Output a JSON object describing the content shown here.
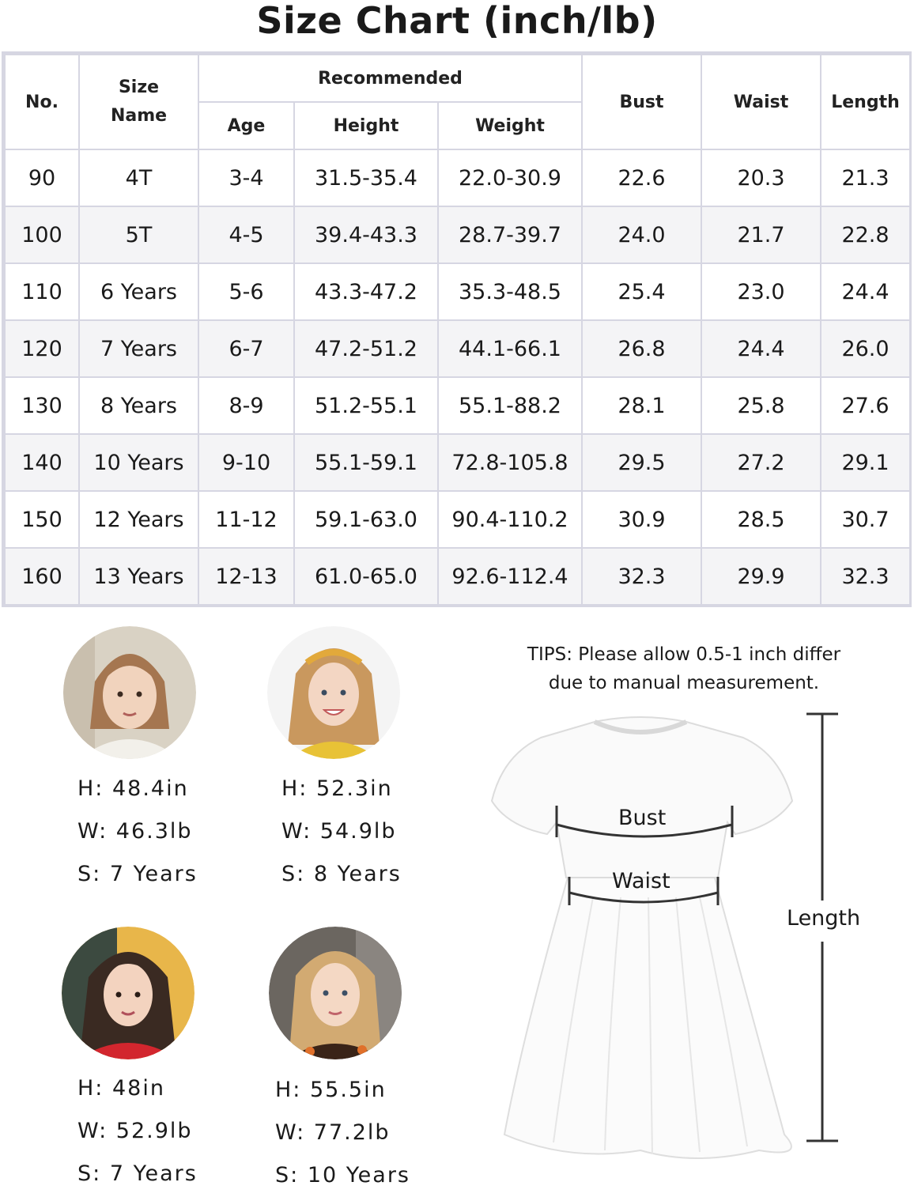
{
  "title": "Size Chart (inch/lb)",
  "table": {
    "headers": {
      "no": "No.",
      "size_name": "Size Name",
      "recommended": "Recommended",
      "age": "Age",
      "height": "Height",
      "weight": "Weight",
      "bust": "Bust",
      "waist": "Waist",
      "length": "Length"
    },
    "rows": [
      [
        "90",
        "4T",
        "3-4",
        "31.5-35.4",
        "22.0-30.9",
        "22.6",
        "20.3",
        "21.3"
      ],
      [
        "100",
        "5T",
        "4-5",
        "39.4-43.3",
        "28.7-39.7",
        "24.0",
        "21.7",
        "22.8"
      ],
      [
        "110",
        "6 Years",
        "5-6",
        "43.3-47.2",
        "35.3-48.5",
        "25.4",
        "23.0",
        "24.4"
      ],
      [
        "120",
        "7 Years",
        "6-7",
        "47.2-51.2",
        "44.1-66.1",
        "26.8",
        "24.4",
        "26.0"
      ],
      [
        "130",
        "8 Years",
        "8-9",
        "51.2-55.1",
        "55.1-88.2",
        "28.1",
        "25.8",
        "27.6"
      ],
      [
        "140",
        "10 Years",
        "9-10",
        "55.1-59.1",
        "72.8-105.8",
        "29.5",
        "27.2",
        "29.1"
      ],
      [
        "150",
        "12 Years",
        "11-12",
        "59.1-63.0",
        "90.4-110.2",
        "30.9",
        "28.5",
        "30.7"
      ],
      [
        "160",
        "13 Years",
        "12-13",
        "61.0-65.0",
        "92.6-112.4",
        "32.3",
        "29.9",
        "32.3"
      ]
    ]
  },
  "models": [
    {
      "h": "H: 48.4in",
      "w": "W: 46.3lb",
      "s": "S: 7 Years",
      "hair": "#b08058",
      "bg": "#d9d2c4",
      "shirt": "#f2f0ea"
    },
    {
      "h": "H: 52.3in",
      "w": "W: 54.9lb",
      "s": "S: 8 Years",
      "hair": "#c9985e",
      "bg": "#f4f4f4",
      "shirt": "#e8c236"
    },
    {
      "h": "H: 48in",
      "w": "W: 52.9lb",
      "s": "S: 7 Years",
      "hair": "#3a2a22",
      "bg": "#e8b64a",
      "shirt": "#d2262e"
    },
    {
      "h": "H: 55.5in",
      "w": "W: 77.2lb",
      "s": "S: 10 Years",
      "hair": "#d2aa72",
      "bg": "#6b6660",
      "shirt": "#3a2418"
    }
  ],
  "tips": {
    "line1": "TIPS:  Please allow 0.5-1 inch differ",
    "line2": "due to manual measurement."
  },
  "diagram": {
    "bust": "Bust",
    "waist": "Waist",
    "length": "Length"
  }
}
